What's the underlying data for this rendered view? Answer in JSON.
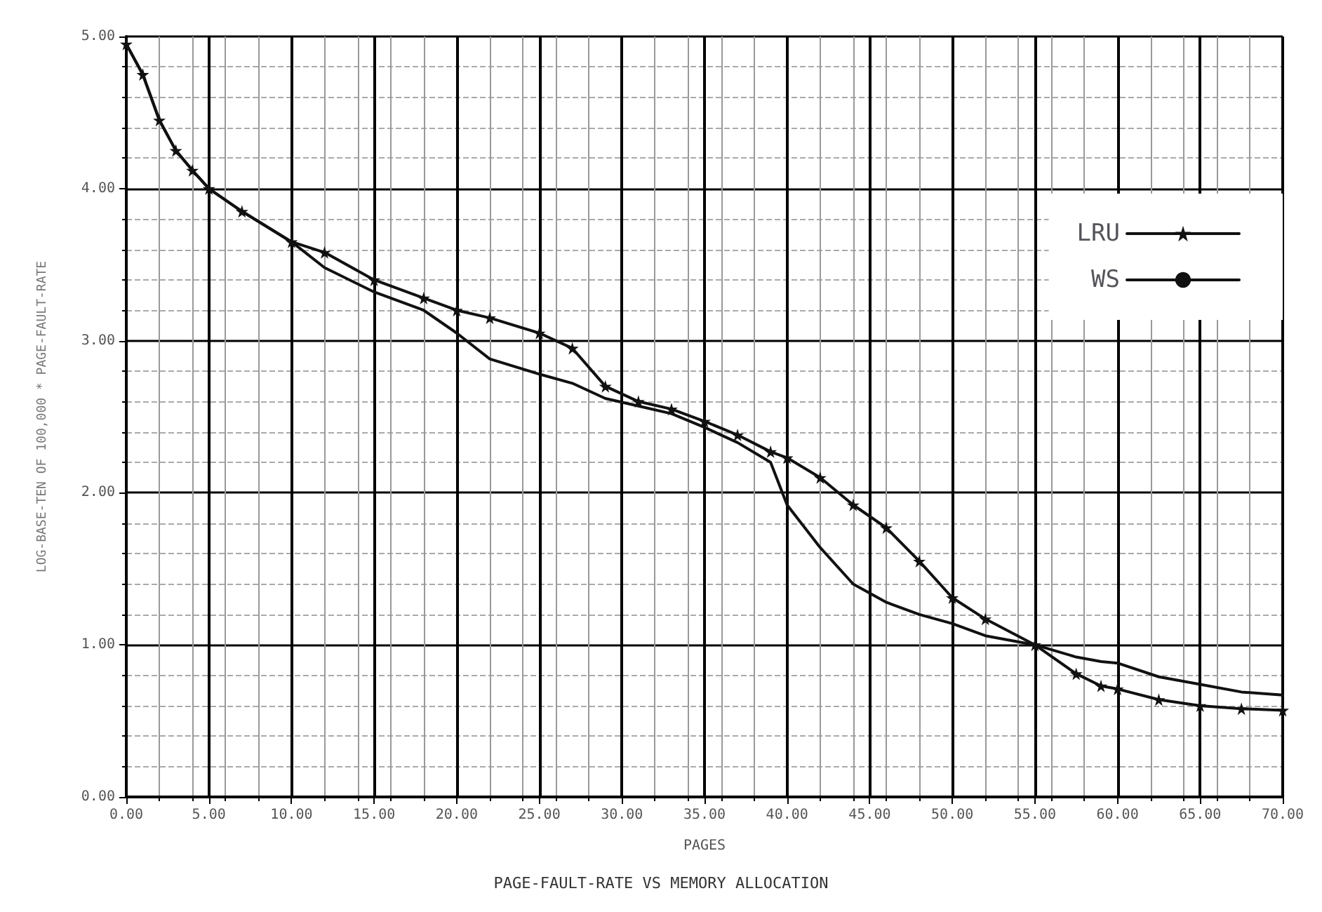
{
  "chart_data": {
    "type": "line",
    "title": "PAGE-FAULT-RATE VS MEMORY ALLOCATION",
    "xlabel": "PAGES",
    "ylabel": "LOG-BASE-TEN OF 100,000 * PAGE-FAULT-RATE",
    "x": [
      0,
      1,
      2,
      3,
      4,
      5,
      7,
      10,
      12,
      15,
      18,
      20,
      22,
      25,
      27,
      29,
      31,
      33,
      35,
      37,
      39,
      40,
      42,
      44,
      46,
      48,
      50,
      52,
      55,
      57.5,
      59,
      60,
      62.5,
      65,
      67.5,
      70
    ],
    "series": [
      {
        "name": "LRU",
        "color": "#111111",
        "marker": "star",
        "values": [
          4.95,
          4.75,
          4.45,
          4.25,
          4.12,
          4.0,
          3.85,
          3.65,
          3.58,
          3.4,
          3.28,
          3.2,
          3.15,
          3.05,
          2.95,
          2.7,
          2.6,
          2.55,
          2.47,
          2.38,
          2.27,
          2.23,
          2.1,
          1.92,
          1.77,
          1.55,
          1.31,
          1.17,
          1.0,
          0.81,
          0.73,
          0.71,
          0.64,
          0.6,
          0.58,
          0.57
        ]
      },
      {
        "name": "WS",
        "color": "#111111",
        "marker": "none",
        "values": [
          4.95,
          4.75,
          4.45,
          4.25,
          4.12,
          4.0,
          3.85,
          3.65,
          3.48,
          3.32,
          3.2,
          3.05,
          2.88,
          2.78,
          2.72,
          2.62,
          2.57,
          2.52,
          2.43,
          2.33,
          2.2,
          1.92,
          1.64,
          1.4,
          1.28,
          1.2,
          1.14,
          1.06,
          1.0,
          0.92,
          0.89,
          0.88,
          0.79,
          0.74,
          0.69,
          0.67
        ]
      }
    ],
    "xlim": [
      0,
      70
    ],
    "ylim": [
      0,
      5
    ],
    "xticks": [
      {
        "value": 0,
        "label": "0.00"
      },
      {
        "value": 5,
        "label": "5.00"
      },
      {
        "value": 10,
        "label": "10.00"
      },
      {
        "value": 15,
        "label": "15.00"
      },
      {
        "value": 20,
        "label": "20.00"
      },
      {
        "value": 25,
        "label": "25.00"
      },
      {
        "value": 30,
        "label": "30.00"
      },
      {
        "value": 35,
        "label": "35.00"
      },
      {
        "value": 40,
        "label": "40.00"
      },
      {
        "value": 45,
        "label": "45.00"
      },
      {
        "value": 50,
        "label": "50.00"
      },
      {
        "value": 55,
        "label": "55.00"
      },
      {
        "value": 60,
        "label": "60.00"
      },
      {
        "value": 65,
        "label": "65.00"
      },
      {
        "value": 70,
        "label": "70.00"
      }
    ],
    "yticks": [
      {
        "value": 0,
        "label": "0.00"
      },
      {
        "value": 1,
        "label": "1.00"
      },
      {
        "value": 2,
        "label": "2.00"
      },
      {
        "value": 3,
        "label": "3.00"
      },
      {
        "value": 4,
        "label": "4.00"
      },
      {
        "value": 5,
        "label": "5.00"
      }
    ],
    "grid": true,
    "legend": "right",
    "line_style": "solid"
  }
}
